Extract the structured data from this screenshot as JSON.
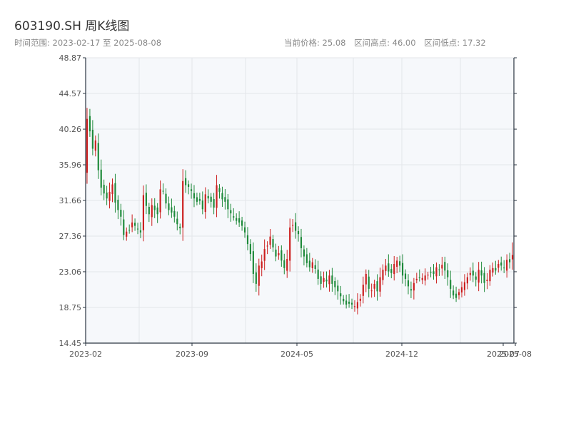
{
  "header": {
    "title": "603190.SH 周K线图",
    "range_text": "时间范围: 2023-02-17 至 2025-08-08",
    "current_price": "当前价格: 25.08",
    "range_high": "区间高点: 46.00",
    "range_low": "区间低点: 17.32"
  },
  "colors": {
    "up": "#cc1f1f",
    "down": "#1e8a3a",
    "plot_bg": "#f6f8fb",
    "grid": "#e3e6ea",
    "axis": "#2a3440"
  },
  "chart_data": {
    "type": "candlestick",
    "title": "603190.SH 周K线图",
    "ylim": [
      14.45,
      48.87
    ],
    "yticks": [
      14.45,
      18.75,
      23.06,
      27.36,
      31.66,
      35.96,
      40.26,
      44.57,
      48.87
    ],
    "ytick_labels": [
      "14.45",
      "18.75",
      "23.06",
      "27.36",
      "31.66",
      "35.96",
      "40.26",
      "44.57",
      "48.87"
    ],
    "xticks": [
      "2023-02",
      "2023-09",
      "2024-05",
      "2024-12",
      "2025-07",
      "2025-08"
    ],
    "closes": [
      41.5,
      40.0,
      37.9,
      38.9,
      35.3,
      33.2,
      32.5,
      31.9,
      32.7,
      33.6,
      31.4,
      30.5,
      29.7,
      27.5,
      27.9,
      28.1,
      29.0,
      28.6,
      28.2,
      27.8,
      32.3,
      31.0,
      30.0,
      31.1,
      30.5,
      30.0,
      33.0,
      32.8,
      31.3,
      30.5,
      30.2,
      29.7,
      28.8,
      28.3,
      34.0,
      33.5,
      33.3,
      32.8,
      31.9,
      31.5,
      31.6,
      30.6,
      32.4,
      31.9,
      31.5,
      30.8,
      33.5,
      32.7,
      31.8,
      31.5,
      30.6,
      30.1,
      29.6,
      29.2,
      29.0,
      28.6,
      27.8,
      26.4,
      25.2,
      22.8,
      21.6,
      23.8,
      24.3,
      25.8,
      26.2,
      27.3,
      26.0,
      24.9,
      25.3,
      24.4,
      23.5,
      24.6,
      28.4,
      28.7,
      28.0,
      27.6,
      25.9,
      24.9,
      24.1,
      23.6,
      24.2,
      23.4,
      22.2,
      21.6,
      22.3,
      21.9,
      22.6,
      21.6,
      21.2,
      20.7,
      20.1,
      19.5,
      19.1,
      19.2,
      19.1,
      18.9,
      19.4,
      19.8,
      21.5,
      22.8,
      21.0,
      20.8,
      21.6,
      20.7,
      22.4,
      23.3,
      23.8,
      23.1,
      22.9,
      24.0,
      24.4,
      23.8,
      22.6,
      22.2,
      21.3,
      20.8,
      21.7,
      22.2,
      22.3,
      22.3,
      22.6,
      22.7,
      23.0,
      22.8,
      23.6,
      23.3,
      23.9,
      23.2,
      22.4,
      21.0,
      20.2,
      19.9,
      20.6,
      21.2,
      21.8,
      22.4,
      22.9,
      22.6,
      22.1,
      23.3,
      22.6,
      21.7,
      22.1,
      23.3,
      23.5,
      23.2,
      24.0,
      23.8,
      23.5,
      24.5,
      24.2,
      25.08
    ],
    "last_bar_high": 26.6,
    "last_bar_low": 23.3,
    "range_high": 46.0,
    "range_low": 17.32,
    "grid": true
  }
}
